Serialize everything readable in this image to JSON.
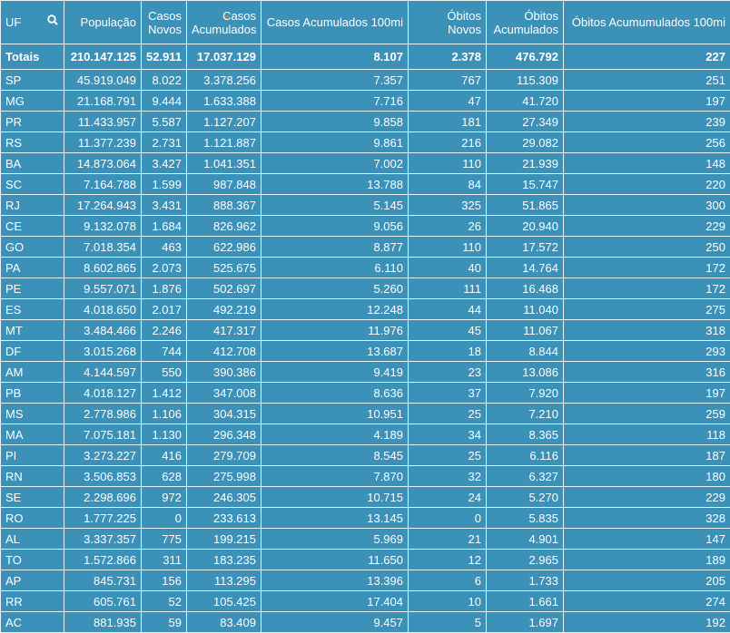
{
  "columns": [
    "UF",
    "População",
    "Casos Novos",
    "Casos Acumulados",
    "Casos Acumulados 100mi",
    "Óbitos Novos",
    "Óbitos Acumulados",
    "Óbitos Acumumulados 100mi"
  ],
  "totals": [
    "Totais",
    "210.147.125",
    "52.911",
    "17.037.129",
    "8.107",
    "2.378",
    "476.792",
    "227"
  ],
  "rows": [
    [
      "SP",
      "45.919.049",
      "8.022",
      "3.378.256",
      "7.357",
      "767",
      "115.309",
      "251"
    ],
    [
      "MG",
      "21.168.791",
      "9.444",
      "1.633.388",
      "7.716",
      "47",
      "41.720",
      "197"
    ],
    [
      "PR",
      "11.433.957",
      "5.587",
      "1.127.207",
      "9.858",
      "181",
      "27.349",
      "239"
    ],
    [
      "RS",
      "11.377.239",
      "2.731",
      "1.121.887",
      "9.861",
      "216",
      "29.082",
      "256"
    ],
    [
      "BA",
      "14.873.064",
      "3.427",
      "1.041.351",
      "7.002",
      "110",
      "21.939",
      "148"
    ],
    [
      "SC",
      "7.164.788",
      "1.599",
      "987.848",
      "13.788",
      "84",
      "15.747",
      "220"
    ],
    [
      "RJ",
      "17.264.943",
      "3.431",
      "888.367",
      "5.145",
      "325",
      "51.865",
      "300"
    ],
    [
      "CE",
      "9.132.078",
      "1.684",
      "826.962",
      "9.056",
      "26",
      "20.940",
      "229"
    ],
    [
      "GO",
      "7.018.354",
      "463",
      "622.986",
      "8.877",
      "110",
      "17.572",
      "250"
    ],
    [
      "PA",
      "8.602.865",
      "2.073",
      "525.675",
      "6.110",
      "40",
      "14.764",
      "172"
    ],
    [
      "PE",
      "9.557.071",
      "1.876",
      "502.697",
      "5.260",
      "111",
      "16.468",
      "172"
    ],
    [
      "ES",
      "4.018.650",
      "2.017",
      "492.219",
      "12.248",
      "44",
      "11.040",
      "275"
    ],
    [
      "MT",
      "3.484.466",
      "2.246",
      "417.317",
      "11.976",
      "45",
      "11.067",
      "318"
    ],
    [
      "DF",
      "3.015.268",
      "744",
      "412.708",
      "13.687",
      "18",
      "8.844",
      "293"
    ],
    [
      "AM",
      "4.144.597",
      "550",
      "390.386",
      "9.419",
      "23",
      "13.086",
      "316"
    ],
    [
      "PB",
      "4.018.127",
      "1.412",
      "347.008",
      "8.636",
      "37",
      "7.920",
      "197"
    ],
    [
      "MS",
      "2.778.986",
      "1.106",
      "304.315",
      "10.951",
      "25",
      "7.210",
      "259"
    ],
    [
      "MA",
      "7.075.181",
      "1.130",
      "296.348",
      "4.189",
      "34",
      "8.365",
      "118"
    ],
    [
      "PI",
      "3.273.227",
      "416",
      "279.709",
      "8.545",
      "25",
      "6.116",
      "187"
    ],
    [
      "RN",
      "3.506.853",
      "628",
      "275.998",
      "7.870",
      "32",
      "6.327",
      "180"
    ],
    [
      "SE",
      "2.298.696",
      "972",
      "246.305",
      "10.715",
      "24",
      "5.270",
      "229"
    ],
    [
      "RO",
      "1.777.225",
      "0",
      "233.613",
      "13.145",
      "0",
      "5.835",
      "328"
    ],
    [
      "AL",
      "3.337.357",
      "775",
      "199.215",
      "5.969",
      "21",
      "4.901",
      "147"
    ],
    [
      "TO",
      "1.572.866",
      "311",
      "183.235",
      "11.650",
      "12",
      "2.965",
      "189"
    ],
    [
      "AP",
      "845.731",
      "156",
      "113.295",
      "13.396",
      "6",
      "1.733",
      "205"
    ],
    [
      "RR",
      "605.761",
      "52",
      "105.425",
      "17.404",
      "10",
      "1.661",
      "274"
    ],
    [
      "AC",
      "881.935",
      "59",
      "83.409",
      "9.457",
      "5",
      "1.697",
      "192"
    ]
  ]
}
